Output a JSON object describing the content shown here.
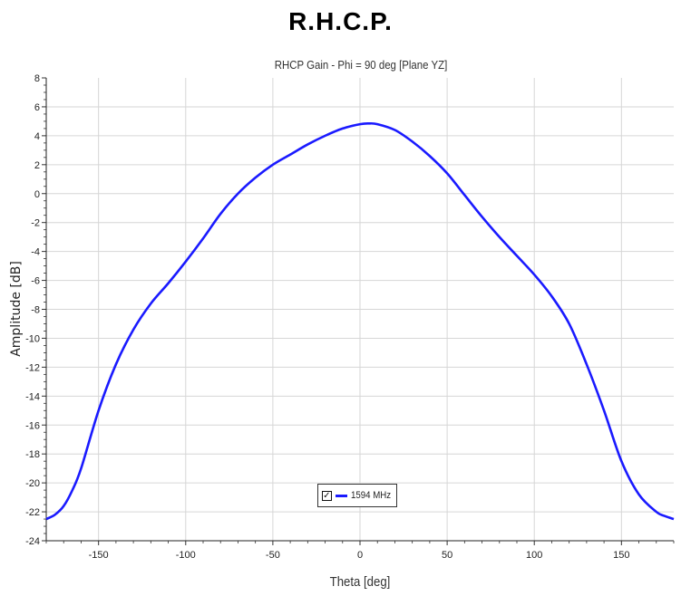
{
  "heading": "R.H.C.P.",
  "chart_data": {
    "type": "line",
    "title": "RHCP Gain - Phi = 90 deg [Plane YZ]",
    "xlabel": "Theta [deg]",
    "ylabel": "Amplitude [dB]",
    "xlim": [
      -180,
      180
    ],
    "ylim": [
      -24,
      8
    ],
    "x_ticks": [
      -150,
      -100,
      -50,
      0,
      50,
      100,
      150
    ],
    "y_ticks": [
      8,
      6,
      4,
      2,
      0,
      -2,
      -4,
      -6,
      -8,
      -10,
      -12,
      -14,
      -16,
      -18,
      -20,
      -22,
      -24
    ],
    "grid": true,
    "legend_position": "bottom-center",
    "series": [
      {
        "name": "1594 MHz",
        "color": "#1a1aff",
        "x": [
          -180,
          -175,
          -170,
          -165,
          -160,
          -150,
          -140,
          -130,
          -120,
          -110,
          -100,
          -90,
          -80,
          -70,
          -60,
          -50,
          -40,
          -30,
          -20,
          -10,
          0,
          5,
          10,
          20,
          30,
          40,
          50,
          60,
          70,
          80,
          90,
          100,
          110,
          120,
          130,
          140,
          150,
          160,
          170,
          175,
          180
        ],
        "values": [
          -22.5,
          -22.2,
          -21.6,
          -20.5,
          -19.0,
          -15.0,
          -11.8,
          -9.4,
          -7.6,
          -6.2,
          -4.7,
          -3.1,
          -1.4,
          0.0,
          1.1,
          2.0,
          2.7,
          3.4,
          4.0,
          4.5,
          4.8,
          4.85,
          4.8,
          4.4,
          3.6,
          2.6,
          1.4,
          -0.1,
          -1.6,
          -3.0,
          -4.3,
          -5.6,
          -7.1,
          -9.0,
          -11.8,
          -15.0,
          -18.5,
          -20.8,
          -22.0,
          -22.3,
          -22.5
        ]
      }
    ]
  }
}
